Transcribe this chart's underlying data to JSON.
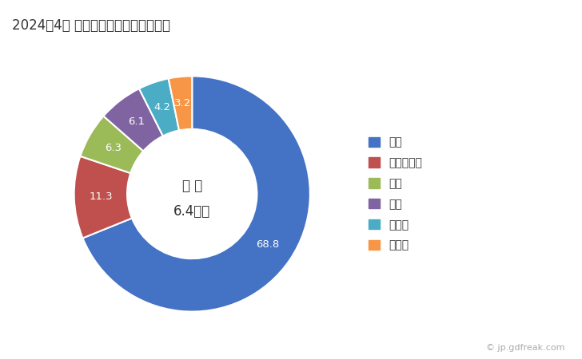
{
  "title": "2024年4月 輸出相手国のシェア（％）",
  "labels": [
    "中国",
    "マレーシア",
    "米国",
    "タイ",
    "インド",
    "その他"
  ],
  "values": [
    68.8,
    11.3,
    6.3,
    6.1,
    4.2,
    3.2
  ],
  "colors": [
    "#4472C4",
    "#C0504D",
    "#9BBB59",
    "#8064A2",
    "#4BACC6",
    "#F79646"
  ],
  "center_label_line1": "総 額",
  "center_label_line2": "6.4億円",
  "watermark": "© jp.gdfreak.com",
  "background_color": "#FFFFFF"
}
